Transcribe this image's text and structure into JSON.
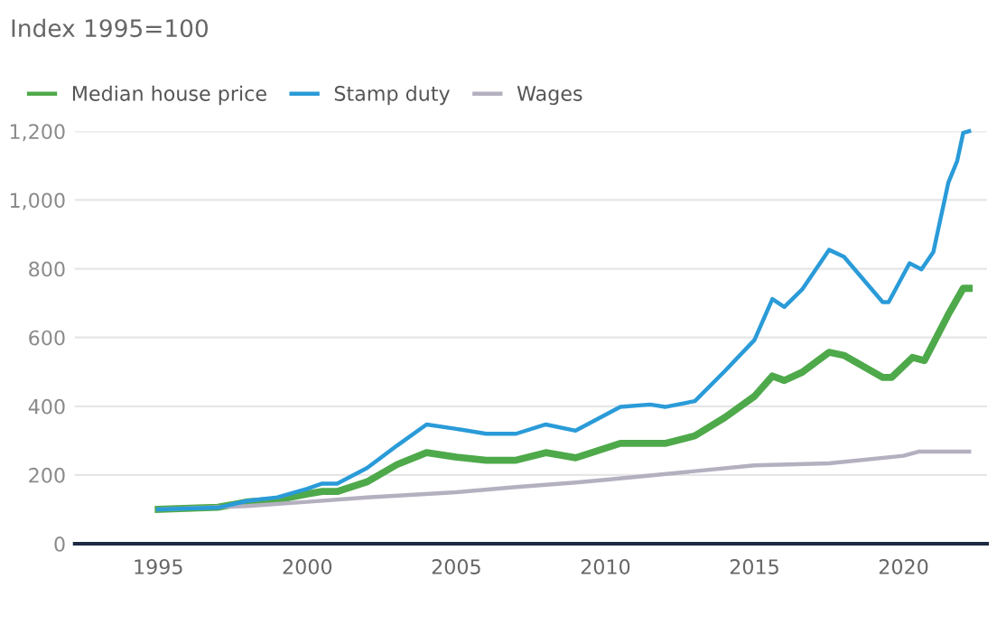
{
  "chart_data": {
    "type": "line",
    "title": "Index 1995=100",
    "series": [
      {
        "name": "Median house price",
        "color": "#4ea94a",
        "x": [
          1995,
          1997,
          1998,
          1999,
          2000,
          2000.5,
          2001,
          2002,
          2003,
          2004,
          2005,
          2006,
          2007,
          2008,
          2009,
          2010.5,
          2012,
          2013,
          2014,
          2015,
          2015.6,
          2016,
          2016.6,
          2017.5,
          2018,
          2019.3,
          2019.6,
          2020.3,
          2020.7,
          2021.5,
          2022,
          2022.2
        ],
        "values": [
          100,
          106,
          122,
          128,
          145,
          152,
          152,
          180,
          230,
          265,
          252,
          243,
          243,
          265,
          250,
          292,
          292,
          314,
          367,
          429,
          488,
          475,
          499,
          557,
          548,
          484,
          484,
          542,
          533,
          667,
          743,
          743
        ]
      },
      {
        "name": "Stamp duty",
        "color": "#2a9bd8",
        "x": [
          1995,
          1997,
          1998,
          1999,
          2000,
          2000.5,
          2001,
          2002,
          2003,
          2004,
          2005,
          2006,
          2007,
          2008,
          2009,
          2010.5,
          2011.5,
          2012,
          2013,
          2014,
          2015,
          2015.6,
          2016,
          2016.6,
          2017.5,
          2018,
          2019.3,
          2019.5,
          2020.2,
          2020.6,
          2021,
          2021.5,
          2021.8,
          2022,
          2022.2
        ],
        "values": [
          100,
          105,
          125,
          135,
          160,
          175,
          175,
          220,
          285,
          347,
          334,
          320,
          320,
          347,
          329,
          398,
          405,
          398,
          415,
          502,
          593,
          712,
          689,
          740,
          855,
          835,
          703,
          703,
          816,
          798,
          849,
          1050,
          1114,
          1195,
          1200
        ]
      },
      {
        "name": "Wages",
        "color": "#b4b0c0",
        "x": [
          1995,
          1998,
          2000,
          2002,
          2005,
          2007,
          2009,
          2010,
          2015,
          2017.5,
          2020,
          2020.5,
          2022.2
        ],
        "values": [
          100,
          110,
          122,
          135,
          150,
          165,
          178,
          186,
          228,
          234,
          256,
          268,
          268
        ]
      }
    ],
    "xlim": [
      1992.2,
      2022.8
    ],
    "xticks": [
      1995,
      2000,
      2005,
      2010,
      2015,
      2020
    ],
    "ylim": [
      0,
      1200
    ],
    "yticks": [
      0,
      {
        "value": 200,
        "label": "200"
      },
      400,
      600,
      800,
      {
        "value": 1000,
        "label": "1,000"
      },
      {
        "value": 1200,
        "label": "1,200"
      }
    ],
    "grid": "y",
    "legend": "top left",
    "marker": "none",
    "line_style": "solid"
  }
}
